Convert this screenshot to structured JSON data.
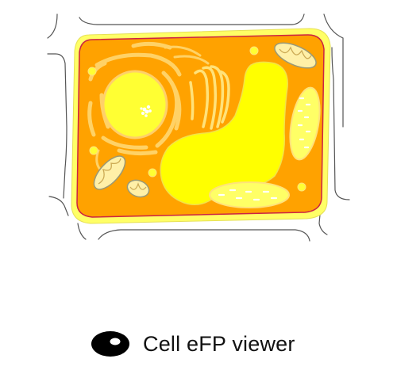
{
  "brand": {
    "name": "Cell eFP viewer",
    "logo_icon": "cell-logo-icon"
  },
  "diagram": {
    "colors": {
      "cell_wall_outline": "#555555",
      "cell_wall_fill": "#ffff66",
      "membrane": "#cc2244",
      "cytoplasm": "#ffa200",
      "vacuole": "#ffff00",
      "nucleus": "#ffff33",
      "organelle": "#ffc830",
      "organelle_stroke": "#ffe880",
      "mitochondrion": "#fff0a8",
      "mitochondrion_stroke": "#999977"
    }
  }
}
